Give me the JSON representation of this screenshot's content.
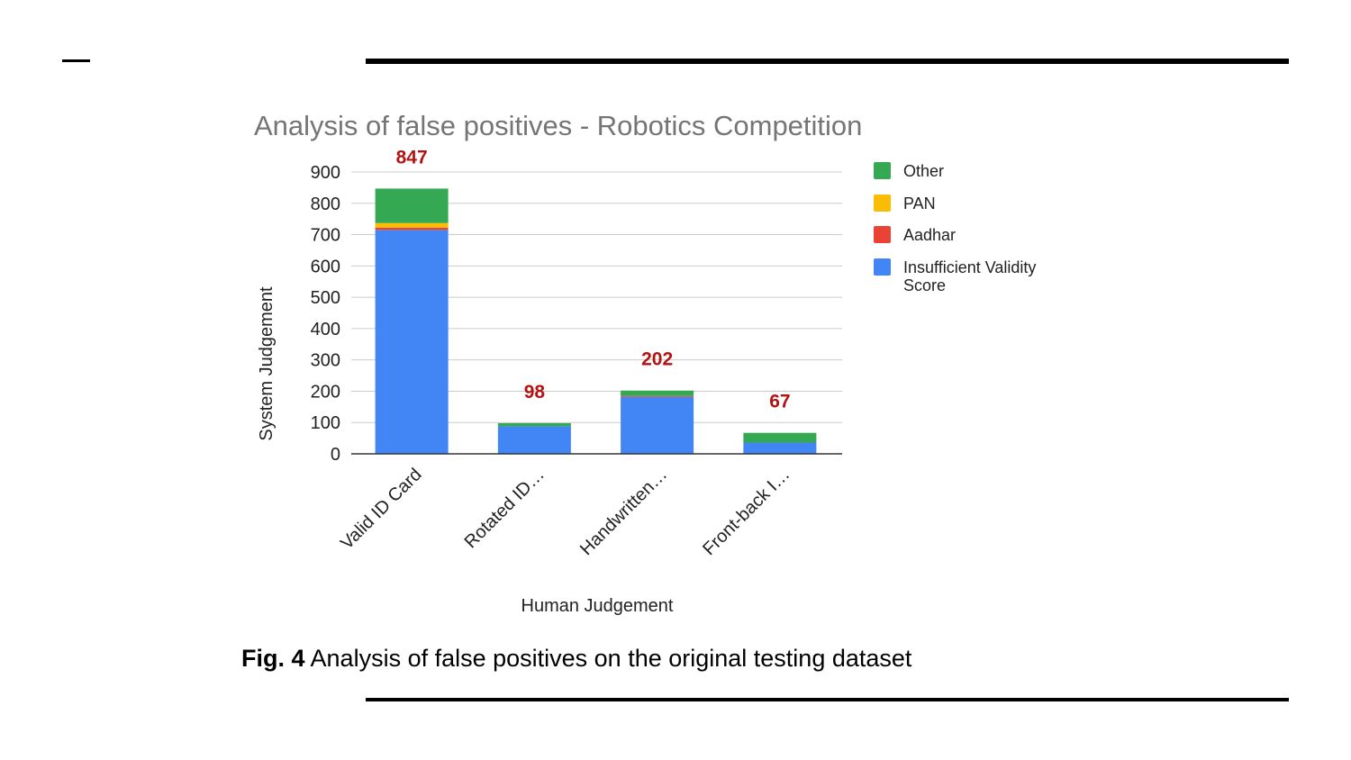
{
  "chart_data": {
    "type": "bar",
    "stacked": true,
    "title": "Analysis of false positives - Robotics Competition",
    "xlabel": "Human Judgement",
    "ylabel": "System Judgement",
    "ylim": [
      0,
      900
    ],
    "yticks": [
      "0",
      "100",
      "200",
      "300",
      "400",
      "500",
      "600",
      "700",
      "800",
      "900"
    ],
    "categories": [
      "Valid ID Card",
      "Rotated ID…",
      "Handwritten…",
      "Front-back I…"
    ],
    "totals": [
      "847",
      "98",
      "202",
      "67"
    ],
    "series": [
      {
        "name": "Insufficient Validity Score",
        "color": "#4285f4",
        "values": [
          715,
          88,
          182,
          36
        ]
      },
      {
        "name": "Aadhar",
        "color": "#ea4335",
        "values": [
          7,
          0,
          3,
          0
        ]
      },
      {
        "name": "PAN",
        "color": "#fbbc04",
        "values": [
          15,
          0,
          0,
          0
        ]
      },
      {
        "name": "Other",
        "color": "#34a853",
        "values": [
          110,
          10,
          17,
          31
        ]
      }
    ],
    "legend": [
      {
        "name": "Other",
        "color": "#34a853"
      },
      {
        "name": "PAN",
        "color": "#fbbc04"
      },
      {
        "name": "Aadhar",
        "color": "#ea4335"
      },
      {
        "name": "Insufficient Validity Score",
        "lines": [
          "Insufficient Validity",
          "Score"
        ],
        "color": "#4285f4"
      }
    ],
    "legend_position": "right",
    "grid": true,
    "total_label_color": "#b31412"
  },
  "caption": {
    "label": "Fig. 4",
    "text": " Analysis of false positives on the original testing dataset"
  }
}
